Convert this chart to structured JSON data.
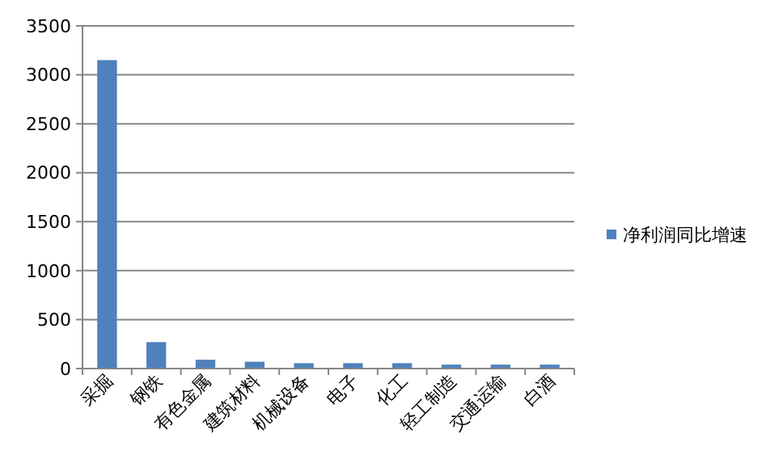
{
  "chart_data": {
    "type": "bar",
    "categories": [
      "采掘",
      "钢铁",
      "有色金属",
      "建筑材料",
      "机械设备",
      "电子",
      "化工",
      "轻工制造",
      "交通运输",
      "白酒"
    ],
    "series": [
      {
        "name": "净利润同比增速",
        "color": "#4f81bd",
        "values": [
          3150,
          270,
          90,
          70,
          55,
          55,
          55,
          40,
          40,
          40
        ]
      }
    ],
    "ylim": [
      0,
      3500
    ],
    "yticks": [
      0,
      500,
      1000,
      1500,
      2000,
      2500,
      3000,
      3500
    ],
    "grid": "y",
    "legend": "right"
  }
}
